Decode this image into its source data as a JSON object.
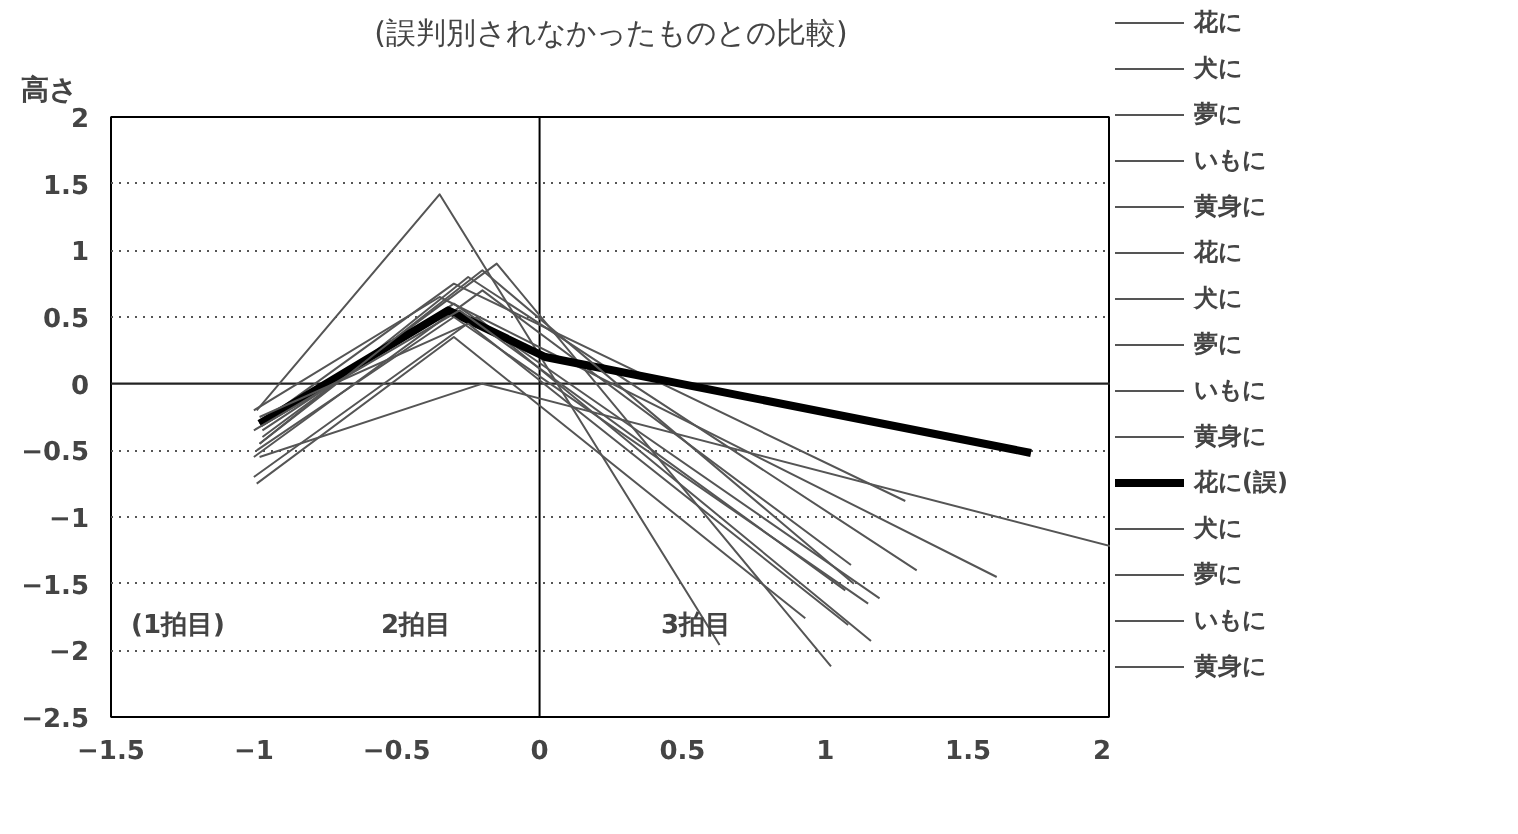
{
  "chart_data": {
    "type": "line",
    "title": "(誤判別されなかったものとの比較)",
    "ylabel": "高さ",
    "xlim": [
      -1.5,
      2
    ],
    "ylim": [
      -2.5,
      2
    ],
    "xticks": [
      {
        "value": -1.5,
        "label": "−1.5"
      },
      {
        "value": -1,
        "label": "−1"
      },
      {
        "value": -0.5,
        "label": "−0.5"
      },
      0,
      0.5,
      1,
      1.5,
      2
    ],
    "yticks": [
      {
        "value": -2.5,
        "label": "−2.5"
      },
      {
        "value": -2,
        "label": "−2"
      },
      {
        "value": -1.5,
        "label": "−1.5"
      },
      {
        "value": -1,
        "label": "−1"
      },
      {
        "value": -0.5,
        "label": "−0.5"
      },
      0,
      0.5,
      1,
      1.5,
      2
    ],
    "grid": "y",
    "legend": "right",
    "line_style": "solid",
    "marker": "none",
    "ref_lines": [
      {
        "axis": "x",
        "value": 0,
        "color": "#000000"
      },
      {
        "axis": "y",
        "value": 0,
        "color": "#222222"
      }
    ],
    "annotations": [
      "(1拍目)",
      "2拍目",
      "3拍目"
    ],
    "series": [
      {
        "name": "花に",
        "color": "#555555",
        "x": [
          -0.98,
          -0.3,
          1.28
        ],
        "values": [
          -0.3,
          0.75,
          -0.88
        ]
      },
      {
        "name": "犬に",
        "color": "#555555",
        "x": [
          -1.0,
          -0.35,
          1.6
        ],
        "values": [
          -0.2,
          0.65,
          -1.45
        ]
      },
      {
        "name": "夢に",
        "color": "#555555",
        "x": [
          -0.98,
          -0.25,
          1.32
        ],
        "values": [
          -0.45,
          0.8,
          -1.4
        ]
      },
      {
        "name": "いもに",
        "color": "#555555",
        "x": [
          -0.97,
          -0.3,
          1.19
        ],
        "values": [
          -0.35,
          0.6,
          -1.61
        ]
      },
      {
        "name": "黄身に",
        "color": "#555555",
        "x": [
          -1.0,
          -0.2,
          1.09
        ],
        "values": [
          -0.55,
          0.7,
          -1.36
        ]
      },
      {
        "name": "花に",
        "color": "#555555",
        "x": [
          -0.99,
          -0.35,
          0.63
        ],
        "values": [
          -0.2,
          1.42,
          -1.96
        ]
      },
      {
        "name": "犬に",
        "color": "#555555",
        "x": [
          -0.98,
          -0.2,
          2.0
        ],
        "values": [
          -0.55,
          0.0,
          -1.22
        ]
      },
      {
        "name": "夢に",
        "color": "#555555",
        "x": [
          -1.0,
          -0.22,
          1.16
        ],
        "values": [
          -0.7,
          0.5,
          -1.93
        ]
      },
      {
        "name": "いもに",
        "color": "#555555",
        "x": [
          -0.97,
          -0.15,
          1.02
        ],
        "values": [
          -0.4,
          0.9,
          -2.12
        ]
      },
      {
        "name": "黄身に",
        "color": "#555555",
        "x": [
          -0.99,
          -0.3,
          0.93
        ],
        "values": [
          -0.75,
          0.35,
          -1.76
        ]
      },
      {
        "name": "花に(誤)",
        "color": "#000000",
        "x": [
          -0.98,
          -0.32,
          0.02,
          1.72
        ],
        "values": [
          -0.3,
          0.55,
          0.2,
          -0.52
        ]
      },
      {
        "name": "犬に",
        "color": "#555555",
        "x": [
          -0.98,
          -0.25,
          1.08
        ],
        "values": [
          -0.25,
          0.45,
          -1.81
        ]
      },
      {
        "name": "夢に",
        "color": "#555555",
        "x": [
          -1.0,
          -0.28,
          1.07
        ],
        "values": [
          -0.35,
          0.55,
          -1.55
        ]
      },
      {
        "name": "いもに",
        "color": "#555555",
        "x": [
          -0.98,
          -0.2,
          1.1
        ],
        "values": [
          -0.45,
          0.85,
          -1.5
        ]
      },
      {
        "name": "黄身に",
        "color": "#555555",
        "x": [
          -0.99,
          -0.3,
          1.15
        ],
        "values": [
          -0.5,
          0.5,
          -1.65
        ]
      }
    ]
  }
}
